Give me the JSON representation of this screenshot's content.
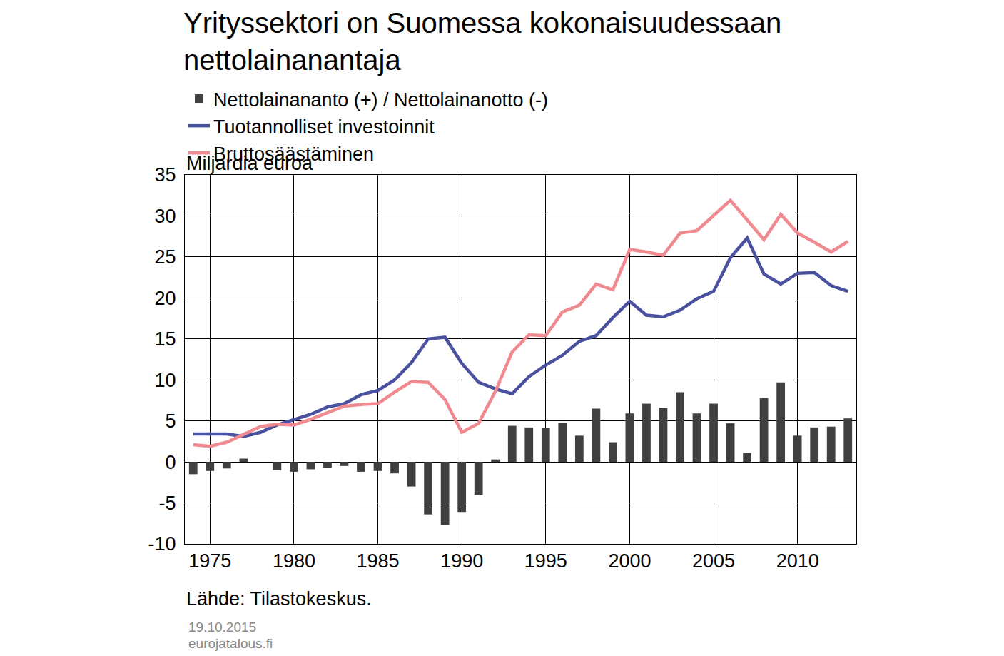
{
  "chart_data": {
    "type": "bar",
    "title": "Yrityssektori on Suomessa kokonaisuudessaan\nnettolainanantaja",
    "y_label": "Miljardia euroa",
    "annotations": [
      "Lähde: Tilastokeskus.",
      "19.10.2015",
      "eurojatalous.fi"
    ],
    "x": [
      1974,
      1975,
      1976,
      1977,
      1978,
      1979,
      1980,
      1981,
      1982,
      1983,
      1984,
      1985,
      1986,
      1987,
      1988,
      1989,
      1990,
      1991,
      1992,
      1993,
      1994,
      1995,
      1996,
      1997,
      1998,
      1999,
      2000,
      2001,
      2002,
      2003,
      2004,
      2005,
      2006,
      2007,
      2008,
      2009,
      2010,
      2011,
      2012,
      2013
    ],
    "series": [
      {
        "name": "Nettolainananto (+) / Nettolainanotto (-)",
        "type": "bar",
        "color": "#404040",
        "values": [
          -1.5,
          -1.1,
          -0.8,
          0.4,
          0,
          -1.0,
          -1.2,
          -0.9,
          -0.7,
          -0.5,
          -1.2,
          -1.1,
          -1.4,
          -3.0,
          -6.4,
          -7.7,
          -6.1,
          -4.0,
          0.3,
          4.4,
          4.2,
          4.1,
          4.8,
          3.2,
          6.5,
          2.4,
          5.9,
          7.1,
          6.6,
          8.5,
          5.9,
          7.1,
          4.7,
          1.1,
          7.8,
          9.7,
          3.2,
          4.2,
          4.3,
          5.3
        ]
      },
      {
        "name": "Tuotannolliset investoinnit",
        "type": "line",
        "color": "#4a52a0",
        "values": [
          3.4,
          3.4,
          3.4,
          3.1,
          3.6,
          4.5,
          5.2,
          5.8,
          6.7,
          7.1,
          8.2,
          8.7,
          10.0,
          12.1,
          15.0,
          15.2,
          12.0,
          9.7,
          8.9,
          8.3,
          10.4,
          11.8,
          13.0,
          14.7,
          15.4,
          17.6,
          19.6,
          17.9,
          17.7,
          18.5,
          19.9,
          20.8,
          24.9,
          27.3,
          22.9,
          21.7,
          23.0,
          23.1,
          21.5,
          20.8
        ]
      },
      {
        "name": "Bruttosäästäminen",
        "type": "line",
        "color": "#f08a90",
        "values": [
          2.1,
          1.9,
          2.4,
          3.3,
          4.3,
          4.6,
          4.5,
          5.2,
          6.0,
          6.8,
          7.0,
          7.1,
          8.5,
          9.8,
          9.7,
          7.6,
          3.6,
          4.7,
          8.6,
          13.4,
          15.5,
          15.4,
          18.3,
          19.1,
          21.7,
          21.0,
          25.9,
          25.6,
          25.2,
          27.9,
          28.2,
          30.0,
          31.9,
          29.5,
          27.1,
          30.2,
          27.9,
          26.8,
          25.6,
          26.9
        ]
      }
    ],
    "xlim": [
      1973.5,
      2013.5
    ],
    "xticks": [
      1975,
      1980,
      1985,
      1990,
      1995,
      2000,
      2005,
      2010
    ],
    "ylim": [
      -10,
      35
    ],
    "yticks": [
      -10,
      -5,
      0,
      5,
      10,
      15,
      20,
      25,
      30,
      35
    ],
    "grid": true,
    "legend": "top-left"
  }
}
